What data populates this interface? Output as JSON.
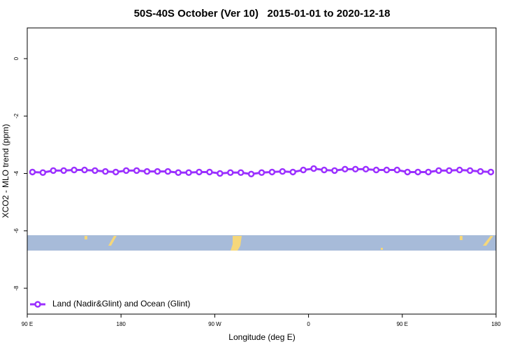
{
  "chart_data": {
    "type": "line",
    "title": "50S-40S October (Ver 10)   2015-01-01 to 2020-12-18",
    "x_label": "Longitude (deg E)",
    "y_label": "XCO2 - MLO trend (ppm)",
    "x": [
      95,
      105,
      115,
      125,
      135,
      145,
      155,
      165,
      175,
      185,
      195,
      205,
      215,
      225,
      235,
      245,
      255,
      265,
      275,
      285,
      295,
      305,
      315,
      325,
      335,
      345,
      355,
      365,
      375,
      385,
      395,
      405,
      415,
      425,
      435,
      445,
      455,
      465,
      475,
      485,
      495,
      505,
      515,
      525,
      535
    ],
    "series": [
      {
        "name": "Land (Nadir&Glint) and Ocean (Glint)",
        "color": "#9b30ff",
        "values": [
          -3.95,
          -3.97,
          -3.9,
          -3.9,
          -3.88,
          -3.88,
          -3.9,
          -3.93,
          -3.95,
          -3.9,
          -3.9,
          -3.93,
          -3.93,
          -3.93,
          -3.97,
          -3.97,
          -3.95,
          -3.95,
          -4.0,
          -3.97,
          -3.97,
          -4.02,
          -3.97,
          -3.95,
          -3.93,
          -3.95,
          -3.88,
          -3.83,
          -3.88,
          -3.9,
          -3.85,
          -3.85,
          -3.85,
          -3.88,
          -3.88,
          -3.88,
          -3.95,
          -3.95,
          -3.95,
          -3.9,
          -3.9,
          -3.88,
          -3.9,
          -3.93,
          -3.95
        ]
      }
    ],
    "xlim": [
      90,
      540
    ],
    "xticks": [
      {
        "value": 90,
        "label": "90 E"
      },
      180,
      {
        "value": 270,
        "label": "90 W"
      },
      {
        "value": 360,
        "label": "0"
      },
      {
        "value": 450,
        "label": "90 E"
      },
      {
        "value": 540,
        "label": "180"
      }
    ],
    "ylim": [
      -8.9,
      1.07
    ],
    "yticks": [
      0,
      -2,
      -4,
      -6,
      -8
    ],
    "legend_position": "bottom-left"
  }
}
